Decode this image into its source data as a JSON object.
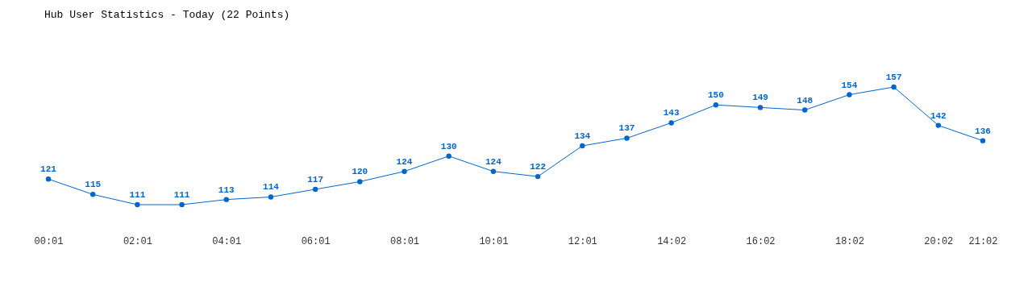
{
  "chart_data": {
    "type": "line",
    "title": "Hub User Statistics - Today (22 Points)",
    "categories": [
      "00:01",
      null,
      "02:01",
      null,
      "04:01",
      null,
      "06:01",
      null,
      "08:01",
      null,
      "10:01",
      null,
      "12:01",
      null,
      "14:02",
      null,
      "16:02",
      null,
      "18:02",
      null,
      "20:02",
      "21:02"
    ],
    "series": [
      {
        "color": "#0066cc",
        "values": [
          121,
          115,
          111,
          111,
          113,
          114,
          117,
          120,
          124,
          130,
          124,
          122,
          134,
          137,
          143,
          150,
          149,
          148,
          154,
          157,
          142,
          136
        ]
      }
    ],
    "marker": "circle",
    "data_labels": true
  }
}
